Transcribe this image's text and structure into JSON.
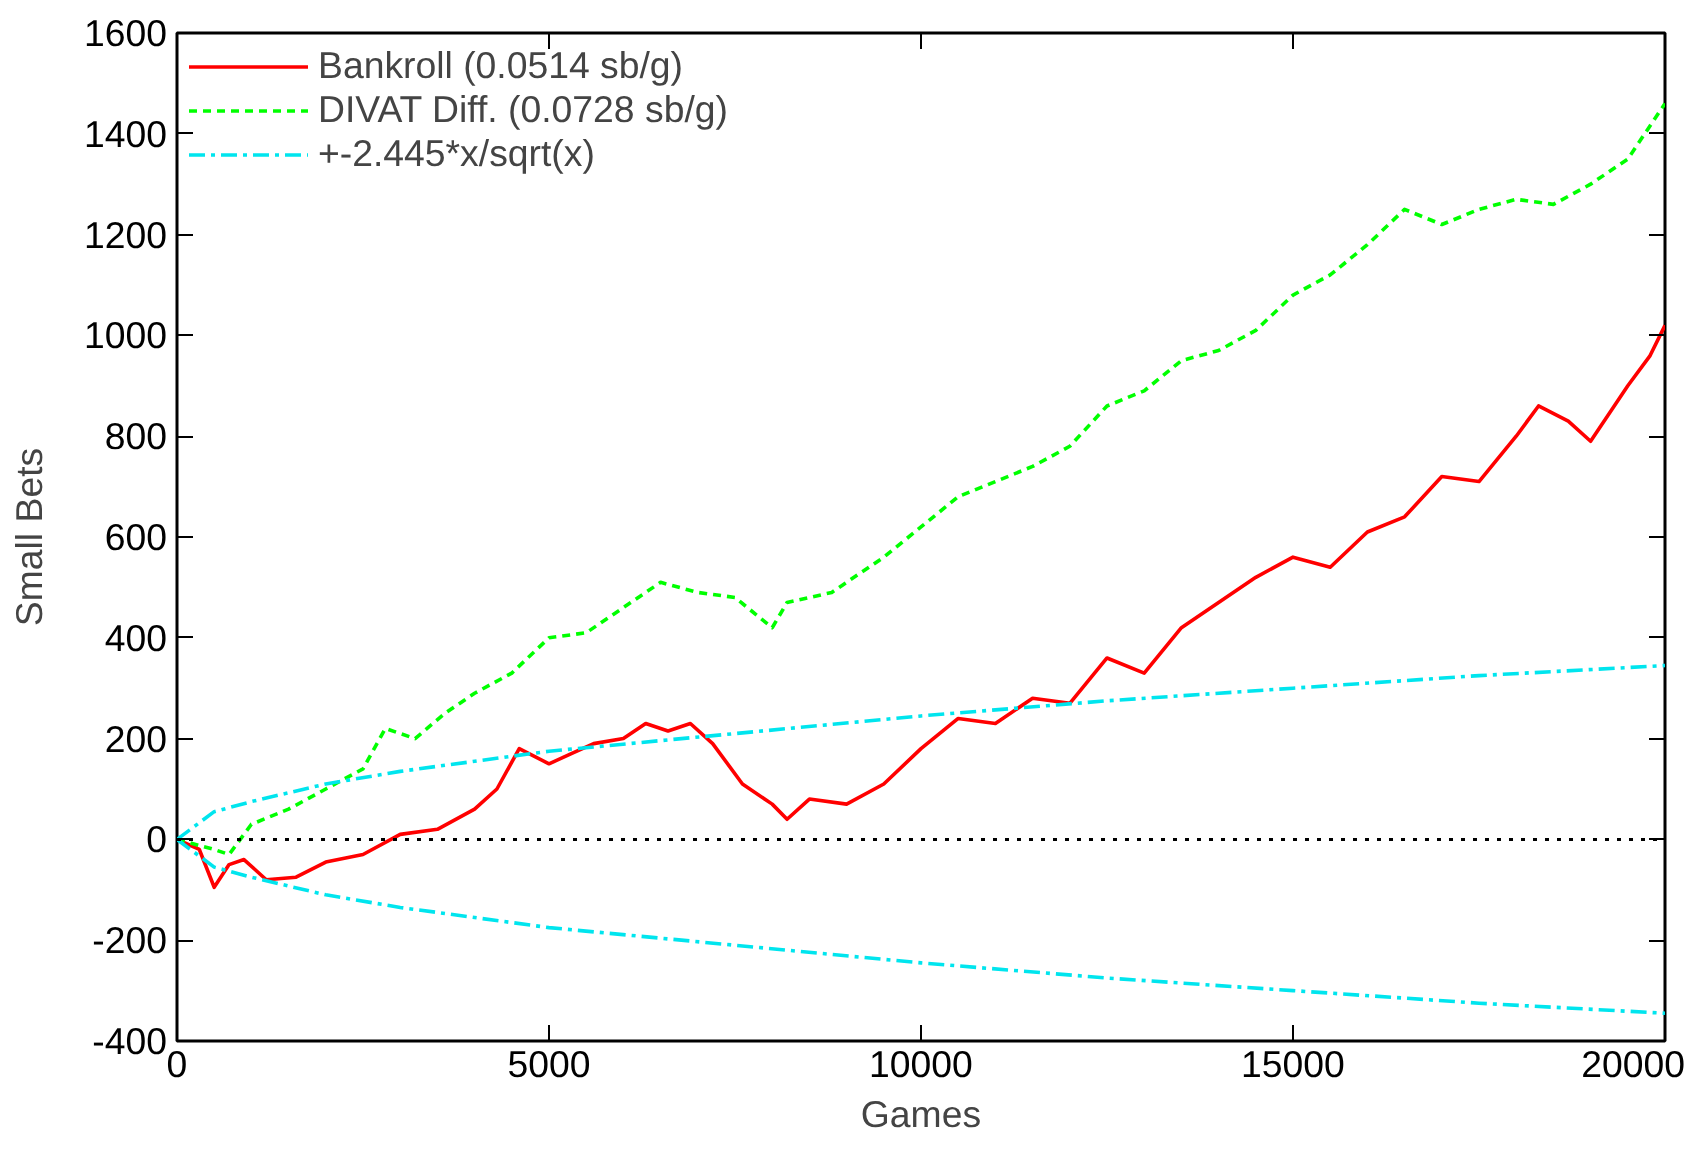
{
  "chart_data": {
    "type": "line",
    "xlabel": "Games",
    "ylabel": "Small Bets",
    "xlim": [
      0,
      20000
    ],
    "xticks": [
      0,
      5000,
      10000,
      15000,
      20000
    ],
    "ylim": [
      -400,
      1600
    ],
    "yticks": [
      -400,
      -200,
      0,
      200,
      400,
      600,
      800,
      1000,
      1200,
      1400,
      1600
    ],
    "grid": false,
    "legend": "top left",
    "ref_lines": [
      {
        "axis": "y",
        "value": 0,
        "color": "#000000",
        "line_style": "dotted"
      }
    ],
    "series": [
      {
        "name": "Bankroll (0.0514 sb/g)",
        "color": "#ff0000",
        "line_style": "solid",
        "x": [
          0,
          300,
          500,
          700,
          900,
          1200,
          1600,
          2000,
          2500,
          3000,
          3500,
          4000,
          4300,
          4600,
          5000,
          5300,
          5600,
          6000,
          6300,
          6600,
          6900,
          7200,
          7600,
          8000,
          8200,
          8500,
          9000,
          9500,
          10000,
          10500,
          11000,
          11500,
          12000,
          12500,
          13000,
          13500,
          14000,
          14500,
          15000,
          15500,
          16000,
          16500,
          17000,
          17500,
          18000,
          18300,
          18700,
          19000,
          19500,
          19800,
          20000
        ],
        "values": [
          0,
          -20,
          -95,
          -50,
          -40,
          -80,
          -75,
          -45,
          -30,
          10,
          20,
          60,
          100,
          180,
          150,
          170,
          190,
          200,
          230,
          215,
          230,
          190,
          110,
          70,
          40,
          80,
          70,
          110,
          180,
          240,
          230,
          280,
          270,
          360,
          330,
          420,
          470,
          520,
          560,
          540,
          610,
          640,
          720,
          710,
          800,
          860,
          830,
          790,
          900,
          960,
          1020
        ]
      },
      {
        "name": "DIVAT Diff. (0.0728 sb/g)",
        "color": "#00ff00",
        "line_style": "dashed",
        "x": [
          0,
          500,
          700,
          1000,
          1500,
          2000,
          2500,
          2800,
          3200,
          3600,
          4000,
          4500,
          5000,
          5500,
          6000,
          6500,
          7000,
          7500,
          8000,
          8200,
          8800,
          9500,
          10000,
          10500,
          11000,
          11500,
          12000,
          12500,
          13000,
          13500,
          14000,
          14500,
          15000,
          15500,
          16000,
          16500,
          17000,
          17500,
          18000,
          18500,
          19000,
          19500,
          20000
        ],
        "values": [
          0,
          -20,
          -30,
          30,
          60,
          100,
          140,
          220,
          200,
          250,
          290,
          330,
          400,
          410,
          460,
          510,
          490,
          480,
          420,
          470,
          490,
          560,
          620,
          680,
          710,
          740,
          780,
          860,
          890,
          950,
          970,
          1010,
          1080,
          1120,
          1180,
          1250,
          1220,
          1250,
          1270,
          1260,
          1300,
          1350,
          1460
        ]
      },
      {
        "name": "+-2.445*x/sqrt(x)",
        "color": "#00e5ee",
        "line_style": "dashdot",
        "x": [
          0,
          500,
          1000,
          2000,
          3000,
          5000,
          7500,
          10000,
          12500,
          15000,
          17500,
          20000
        ],
        "values": [
          0,
          55,
          75,
          110,
          135,
          175,
          210,
          245,
          275,
          300,
          325,
          345
        ]
      },
      {
        "color": "#00e5ee",
        "line_style": "dashdot",
        "x": [
          0,
          500,
          1000,
          2000,
          3000,
          5000,
          7500,
          10000,
          12500,
          15000,
          17500,
          20000
        ],
        "values": [
          0,
          -55,
          -75,
          -110,
          -135,
          -175,
          -210,
          -245,
          -275,
          -300,
          -325,
          -345
        ]
      }
    ]
  }
}
